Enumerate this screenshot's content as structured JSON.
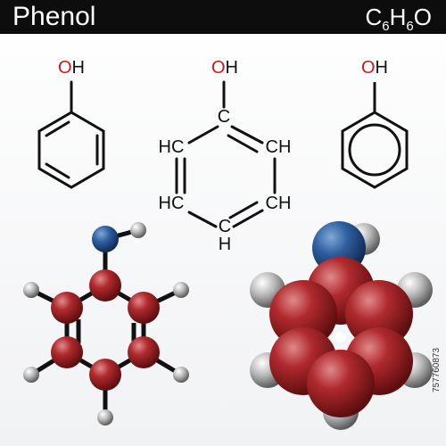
{
  "header": {
    "title": "Phenol",
    "formula": [
      {
        "text": "C",
        "sub": false
      },
      {
        "text": "6",
        "sub": true
      },
      {
        "text": "H",
        "sub": false
      },
      {
        "text": "6",
        "sub": true
      },
      {
        "text": "O",
        "sub": false
      }
    ]
  },
  "structures": {
    "skeletal": {
      "label": "OH"
    },
    "condensed": {
      "hydroxyl": "OH",
      "top": "C",
      "upper_left": "HC",
      "upper_right": "CH",
      "lower_left": "HC",
      "lower_right": "CH",
      "bottom": "C",
      "bottom_h": "H"
    },
    "aromatic": {
      "label": "OH"
    }
  },
  "image_id": "757760873"
}
